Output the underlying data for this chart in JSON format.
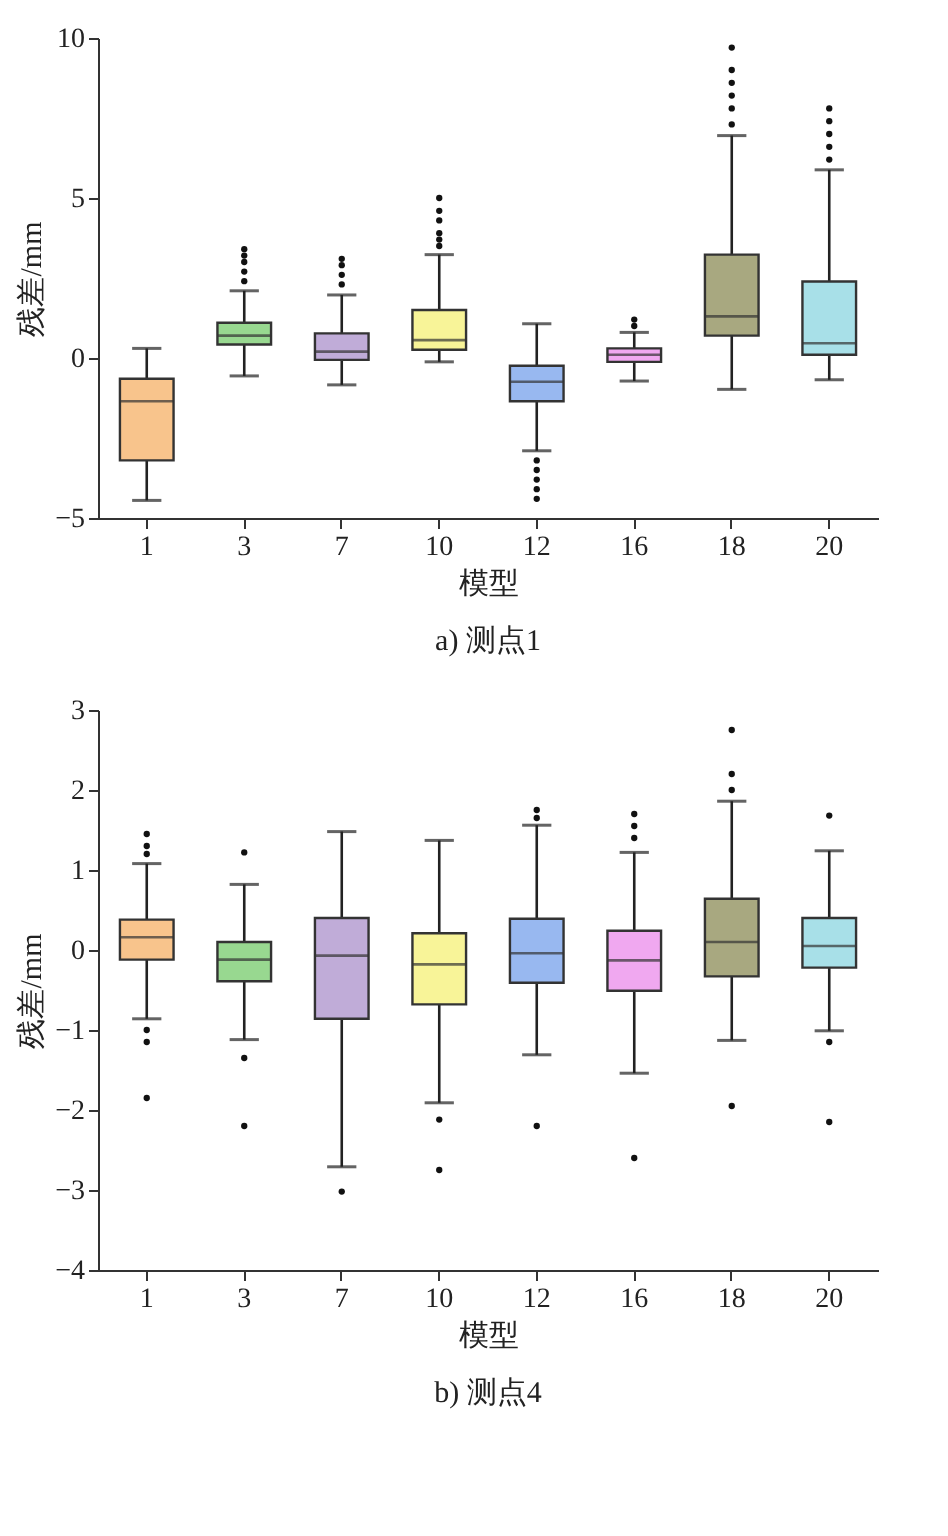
{
  "chart_data": [
    {
      "type": "box",
      "title": "a) 测点1",
      "xlabel": "模型",
      "ylabel": "残差/mm",
      "categories": [
        "1",
        "3",
        "7",
        "10",
        "12",
        "16",
        "18",
        "20"
      ],
      "colors": [
        "#f8c48c",
        "#98d890",
        "#c0acd8",
        "#f8f498",
        "#98b8f0",
        "#f0a8f0",
        "#a8a880",
        "#a8e0e8"
      ],
      "boxes": [
        {
          "low": -4.45,
          "q1": -3.2,
          "median": -1.35,
          "q3": -0.65,
          "high": 0.3
        },
        {
          "low": -0.56,
          "q1": 0.42,
          "median": 0.7,
          "q3": 1.1,
          "high": 2.1,
          "outliers": [
            2.4,
            2.7,
            3.0,
            3.2,
            3.4
          ]
        },
        {
          "low": -0.84,
          "q1": -0.06,
          "median": 0.2,
          "q3": 0.77,
          "high": 1.97,
          "outliers": [
            2.3,
            2.6,
            2.9,
            3.1
          ]
        },
        {
          "low": -0.12,
          "q1": 0.26,
          "median": 0.56,
          "q3": 1.5,
          "high": 3.23,
          "outliers": [
            3.5,
            3.7,
            3.9,
            4.3,
            4.6,
            5.0
          ]
        },
        {
          "low": -2.9,
          "q1": -1.35,
          "median": -0.74,
          "q3": -0.24,
          "high": 1.07,
          "outliers": [
            -3.2,
            -3.5,
            -3.8,
            -4.1,
            -4.4
          ]
        },
        {
          "low": -0.72,
          "q1": -0.12,
          "median": 0.1,
          "q3": 0.3,
          "high": 0.8,
          "outliers": [
            1.0,
            1.2
          ]
        },
        {
          "low": -0.98,
          "q1": 0.7,
          "median": 1.3,
          "q3": 3.23,
          "high": 6.95,
          "outliers": [
            7.3,
            7.8,
            8.2,
            8.6,
            9.0,
            9.7
          ]
        },
        {
          "low": -0.68,
          "q1": 0.1,
          "median": 0.46,
          "q3": 2.39,
          "high": 5.88,
          "outliers": [
            6.2,
            6.6,
            7.0,
            7.4,
            7.8
          ]
        }
      ],
      "ylim": [
        -5,
        10
      ],
      "yticks": [
        -5,
        0,
        5,
        10
      ]
    },
    {
      "type": "box",
      "title": "b) 测点4",
      "xlabel": "模型",
      "ylabel": "残差/mm",
      "categories": [
        "1",
        "3",
        "7",
        "10",
        "12",
        "16",
        "18",
        "20"
      ],
      "colors": [
        "#f8c48c",
        "#98d890",
        "#c0acd8",
        "#f8f498",
        "#98b8f0",
        "#f0a8f0",
        "#a8a880",
        "#a8e0e8"
      ],
      "boxes": [
        {
          "low": -0.86,
          "q1": -0.12,
          "median": 0.16,
          "q3": 0.38,
          "high": 1.08,
          "outliers": [
            1.2,
            1.3,
            1.45,
            -1.0,
            -1.15,
            -1.85
          ]
        },
        {
          "low": -1.12,
          "q1": -0.39,
          "median": -0.12,
          "q3": 0.1,
          "high": 0.82,
          "outliers": [
            1.22,
            -1.35,
            -2.2
          ]
        },
        {
          "low": -2.71,
          "q1": -0.86,
          "median": -0.07,
          "q3": 0.4,
          "high": 1.48,
          "outliers": [
            -3.02
          ]
        },
        {
          "low": -1.91,
          "q1": -0.68,
          "median": -0.18,
          "q3": 0.21,
          "high": 1.37,
          "outliers": [
            -2.12,
            -2.75
          ]
        },
        {
          "low": -1.31,
          "q1": -0.41,
          "median": -0.04,
          "q3": 0.39,
          "high": 1.56,
          "outliers": [
            1.65,
            1.75,
            -2.2
          ]
        },
        {
          "low": -1.54,
          "q1": -0.51,
          "median": -0.13,
          "q3": 0.24,
          "high": 1.22,
          "outliers": [
            1.4,
            1.55,
            1.7,
            -2.6
          ]
        },
        {
          "low": -1.13,
          "q1": -0.33,
          "median": 0.1,
          "q3": 0.64,
          "high": 1.86,
          "outliers": [
            2.0,
            2.2,
            2.75,
            -1.95
          ]
        },
        {
          "low": -1.01,
          "q1": -0.22,
          "median": 0.05,
          "q3": 0.4,
          "high": 1.24,
          "outliers": [
            1.68,
            -1.15,
            -2.15
          ]
        }
      ],
      "ylim": [
        -4,
        3
      ],
      "yticks": [
        -4,
        -3,
        -2,
        -1,
        0,
        1,
        2,
        3
      ]
    }
  ]
}
